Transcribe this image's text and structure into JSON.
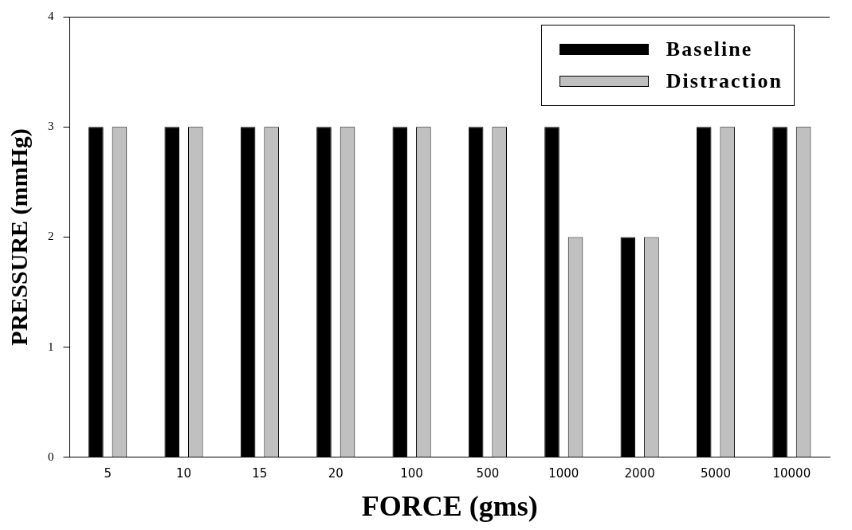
{
  "chart_data": {
    "type": "bar",
    "xlabel": "FORCE (gms)",
    "ylabel": "PRESSURE (mmHg)",
    "categories": [
      "5",
      "10",
      "15",
      "20",
      "100",
      "500",
      "1000",
      "2000",
      "5000",
      "10000"
    ],
    "series": [
      {
        "name": "Baseline",
        "color": "#000000",
        "values": [
          3,
          3,
          3,
          3,
          3,
          3,
          3,
          2,
          3,
          3
        ]
      },
      {
        "name": "Distraction",
        "color": "#c0c0c0",
        "values": [
          3,
          3,
          3,
          3,
          3,
          3,
          2,
          2,
          3,
          3
        ]
      }
    ],
    "ylim": [
      0,
      4
    ],
    "yticks": [
      0,
      1,
      2,
      3,
      4
    ],
    "grid": false,
    "legend": "top right"
  }
}
